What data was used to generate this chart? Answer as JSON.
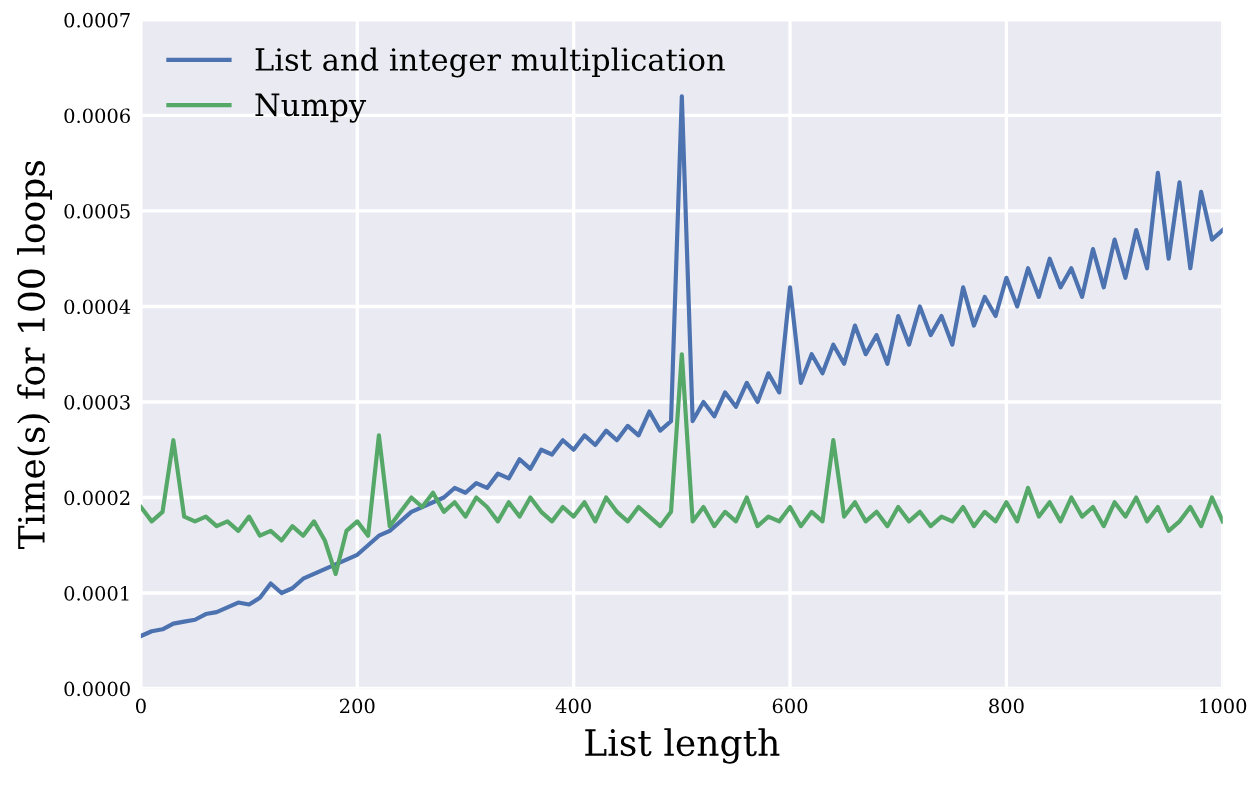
{
  "chart_data": {
    "type": "line",
    "xlabel": "List length",
    "ylabel": "Time(s) for 100 loops",
    "x": [
      0,
      10,
      20,
      30,
      40,
      50,
      60,
      70,
      80,
      90,
      100,
      110,
      120,
      130,
      140,
      150,
      160,
      170,
      180,
      190,
      200,
      210,
      220,
      230,
      240,
      250,
      260,
      270,
      280,
      290,
      300,
      310,
      320,
      330,
      340,
      350,
      360,
      370,
      380,
      390,
      400,
      410,
      420,
      430,
      440,
      450,
      460,
      470,
      480,
      490,
      500,
      510,
      520,
      530,
      540,
      550,
      560,
      570,
      580,
      590,
      600,
      610,
      620,
      630,
      640,
      650,
      660,
      670,
      680,
      690,
      700,
      710,
      720,
      730,
      740,
      750,
      760,
      770,
      780,
      790,
      800,
      810,
      820,
      830,
      840,
      850,
      860,
      870,
      880,
      890,
      900,
      910,
      920,
      930,
      940,
      950,
      960,
      970,
      980,
      990,
      1000
    ],
    "series": [
      {
        "name": "List and integer multiplication",
        "color": "#4c72b0",
        "values": [
          5.5e-05,
          6e-05,
          6.2e-05,
          6.8e-05,
          7e-05,
          7.2e-05,
          7.8e-05,
          8e-05,
          8.5e-05,
          9e-05,
          8.8e-05,
          9.5e-05,
          0.00011,
          0.0001,
          0.000105,
          0.000115,
          0.00012,
          0.000125,
          0.00013,
          0.000135,
          0.00014,
          0.00015,
          0.00016,
          0.000165,
          0.000175,
          0.000185,
          0.00019,
          0.000195,
          0.0002,
          0.00021,
          0.000205,
          0.000215,
          0.00021,
          0.000225,
          0.00022,
          0.00024,
          0.00023,
          0.00025,
          0.000245,
          0.00026,
          0.00025,
          0.000265,
          0.000255,
          0.00027,
          0.00026,
          0.000275,
          0.000265,
          0.00029,
          0.00027,
          0.00028,
          0.00062,
          0.00028,
          0.0003,
          0.000285,
          0.00031,
          0.000295,
          0.00032,
          0.0003,
          0.00033,
          0.00031,
          0.00042,
          0.00032,
          0.00035,
          0.00033,
          0.00036,
          0.00034,
          0.00038,
          0.00035,
          0.00037,
          0.00034,
          0.00039,
          0.00036,
          0.0004,
          0.00037,
          0.00039,
          0.00036,
          0.00042,
          0.00038,
          0.00041,
          0.00039,
          0.00043,
          0.0004,
          0.00044,
          0.00041,
          0.00045,
          0.00042,
          0.00044,
          0.00041,
          0.00046,
          0.00042,
          0.00047,
          0.00043,
          0.00048,
          0.00044,
          0.00054,
          0.00045,
          0.00053,
          0.00044,
          0.00052,
          0.00047,
          0.00048
        ]
      },
      {
        "name": "Numpy",
        "color": "#55a868",
        "values": [
          0.00019,
          0.000175,
          0.000185,
          0.00026,
          0.00018,
          0.000175,
          0.00018,
          0.00017,
          0.000175,
          0.000165,
          0.00018,
          0.00016,
          0.000165,
          0.000155,
          0.00017,
          0.00016,
          0.000175,
          0.000155,
          0.00012,
          0.000165,
          0.000175,
          0.00016,
          0.000265,
          0.00017,
          0.000185,
          0.0002,
          0.00019,
          0.000205,
          0.000185,
          0.000195,
          0.00018,
          0.0002,
          0.00019,
          0.000175,
          0.000195,
          0.00018,
          0.0002,
          0.000185,
          0.000175,
          0.00019,
          0.00018,
          0.000195,
          0.000175,
          0.0002,
          0.000185,
          0.000175,
          0.00019,
          0.00018,
          0.00017,
          0.000185,
          0.00035,
          0.000175,
          0.00019,
          0.00017,
          0.000185,
          0.000175,
          0.0002,
          0.00017,
          0.00018,
          0.000175,
          0.00019,
          0.00017,
          0.000185,
          0.000175,
          0.00026,
          0.00018,
          0.000195,
          0.000175,
          0.000185,
          0.00017,
          0.00019,
          0.000175,
          0.000185,
          0.00017,
          0.00018,
          0.000175,
          0.00019,
          0.00017,
          0.000185,
          0.000175,
          0.000195,
          0.000175,
          0.00021,
          0.00018,
          0.000195,
          0.000175,
          0.0002,
          0.00018,
          0.00019,
          0.00017,
          0.000195,
          0.00018,
          0.0002,
          0.000175,
          0.00019,
          0.000165,
          0.000175,
          0.00019,
          0.00017,
          0.0002,
          0.000175
        ]
      }
    ],
    "xlim": [
      0,
      1000
    ],
    "xticks": [
      0,
      200,
      400,
      600,
      800,
      1000
    ],
    "ylim": [
      0,
      0.0007
    ],
    "yticks": [
      {
        "value": 0,
        "label": "0.0000"
      },
      {
        "value": 0.0001,
        "label": "0.0001"
      },
      {
        "value": 0.0002,
        "label": "0.0002"
      },
      {
        "value": 0.0003,
        "label": "0.0003"
      },
      {
        "value": 0.0004,
        "label": "0.0004"
      },
      {
        "value": 0.0005,
        "label": "0.0005"
      },
      {
        "value": 0.0006,
        "label": "0.0006"
      },
      {
        "value": 0.0007,
        "label": "0.0007"
      }
    ],
    "grid": true,
    "legend": "top left"
  }
}
